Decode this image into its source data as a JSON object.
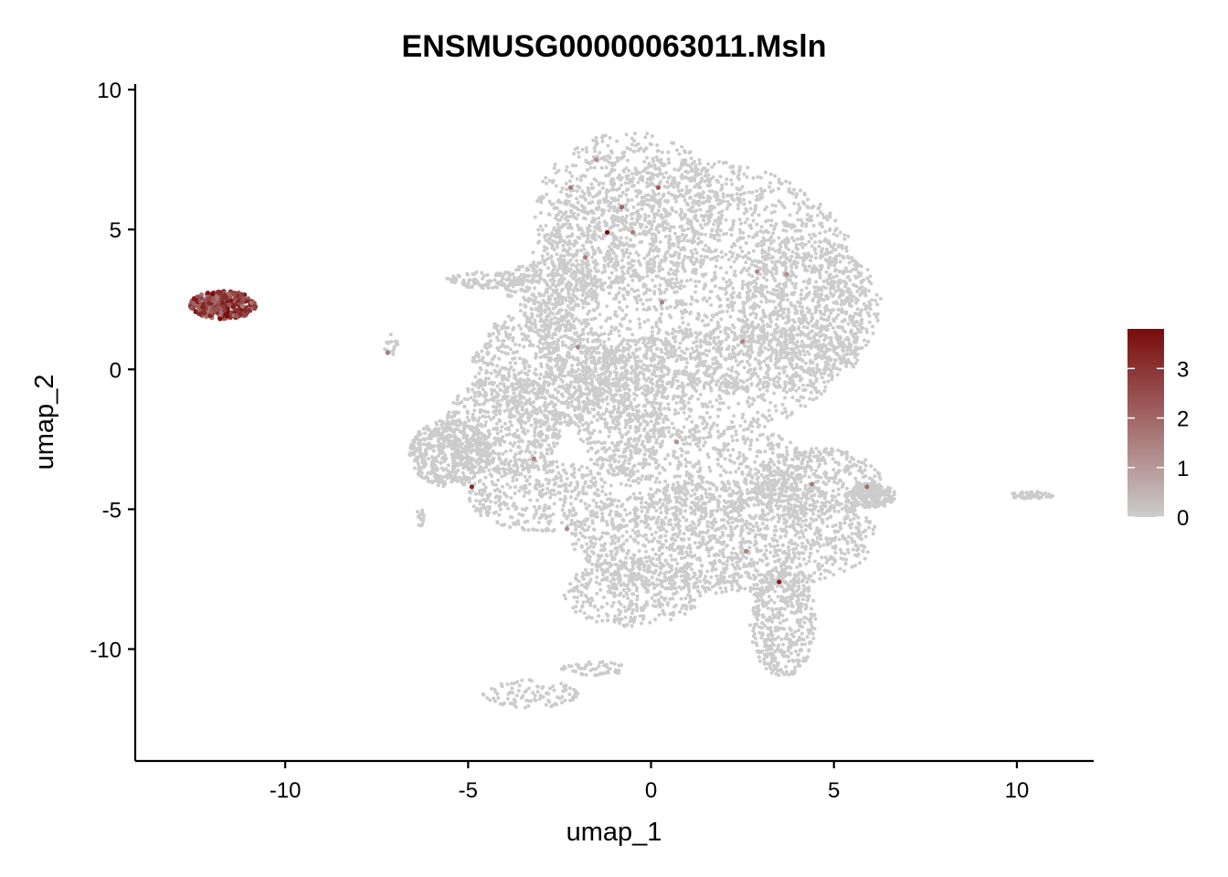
{
  "chart_data": {
    "type": "scatter",
    "title": "ENSMUSG00000063011.Msln",
    "xlabel": "umap_1",
    "ylabel": "umap_2",
    "xlim": [
      -14.1,
      12.1
    ],
    "ylim": [
      -14,
      10.2
    ],
    "x_ticks": [
      -10,
      -5,
      0,
      5,
      10
    ],
    "y_ticks": [
      -10,
      -5,
      0,
      5,
      10
    ],
    "grid": false,
    "legend": {
      "type": "colorbar",
      "position": "right",
      "ticks": [
        0,
        1,
        2,
        3
      ],
      "range": [
        0,
        3.8
      ],
      "colors": {
        "low": "#cccccc",
        "high": "#7a0b0b"
      }
    },
    "background_regions": [
      {
        "cx": 1.2,
        "cy": 2.5,
        "rx": 4.7,
        "ry": 5.0,
        "n": 2600
      },
      {
        "cx": -0.6,
        "cy": 5.5,
        "rx": 2.6,
        "ry": 3.0,
        "n": 800
      },
      {
        "cx": 4.4,
        "cy": 2.3,
        "rx": 1.9,
        "ry": 2.4,
        "n": 550
      },
      {
        "cx": -3.0,
        "cy": 0.0,
        "rx": 1.9,
        "ry": 2.2,
        "n": 700
      },
      {
        "cx": -2.7,
        "cy": 3.0,
        "rx": 1.4,
        "ry": 0.9,
        "n": 250
      },
      {
        "cx": -5.5,
        "cy": -3.0,
        "rx": 1.1,
        "ry": 1.2,
        "n": 500
      },
      {
        "cx": -4.0,
        "cy": -2.0,
        "rx": 1.6,
        "ry": 1.8,
        "n": 500
      },
      {
        "cx": -3.0,
        "cy": -4.5,
        "rx": 2.0,
        "ry": 1.3,
        "n": 400
      },
      {
        "cx": -0.8,
        "cy": -1.5,
        "rx": 1.3,
        "ry": 2.3,
        "n": 500
      },
      {
        "cx": 2.0,
        "cy": -6.0,
        "rx": 4.2,
        "ry": 2.0,
        "n": 1500
      },
      {
        "cx": 1.5,
        "cy": -3.5,
        "rx": 2.8,
        "ry": 1.6,
        "n": 500
      },
      {
        "cx": 4.5,
        "cy": -4.0,
        "rx": 1.8,
        "ry": 1.2,
        "n": 400
      },
      {
        "cx": 6.0,
        "cy": -4.5,
        "rx": 0.7,
        "ry": 0.45,
        "n": 180
      },
      {
        "cx": 3.6,
        "cy": -9.0,
        "rx": 0.9,
        "ry": 2.0,
        "n": 450
      },
      {
        "cx": -0.5,
        "cy": -8.0,
        "rx": 1.9,
        "ry": 1.2,
        "n": 350
      },
      {
        "cx": 2.2,
        "cy": 0.4,
        "rx": 3.5,
        "ry": 1.2,
        "n": 500
      },
      {
        "cx": -4.4,
        "cy": 3.2,
        "rx": 1.2,
        "ry": 0.3,
        "n": 110
      },
      {
        "cx": -6.3,
        "cy": -5.3,
        "rx": 0.1,
        "ry": 0.35,
        "n": 20
      },
      {
        "cx": -7.1,
        "cy": 0.9,
        "rx": 0.2,
        "ry": 0.4,
        "n": 18
      },
      {
        "cx": 10.4,
        "cy": -4.5,
        "rx": 0.6,
        "ry": 0.15,
        "n": 50
      },
      {
        "cx": -3.3,
        "cy": -11.6,
        "rx": 1.3,
        "ry": 0.5,
        "n": 100
      },
      {
        "cx": -1.6,
        "cy": -10.7,
        "rx": 0.9,
        "ry": 0.3,
        "n": 50
      }
    ],
    "expressing_cluster": {
      "cx": -11.7,
      "cy": 2.3,
      "rx": 0.9,
      "ry": 0.5,
      "n": 320,
      "value_range": [
        1.5,
        3.8
      ]
    },
    "scattered_expressing_points": [
      {
        "x": -1.2,
        "y": 4.9,
        "v": 3.8
      },
      {
        "x": -2.2,
        "y": 6.5,
        "v": 1.6
      },
      {
        "x": -1.5,
        "y": 7.5,
        "v": 1.2
      },
      {
        "x": -0.8,
        "y": 5.8,
        "v": 2.0
      },
      {
        "x": 0.2,
        "y": 6.5,
        "v": 2.2
      },
      {
        "x": -0.5,
        "y": 4.9,
        "v": 1.5
      },
      {
        "x": 2.9,
        "y": 3.5,
        "v": 1.4
      },
      {
        "x": 3.7,
        "y": 3.4,
        "v": 1.2
      },
      {
        "x": 0.3,
        "y": 2.4,
        "v": 1.5
      },
      {
        "x": -1.8,
        "y": 4.0,
        "v": 1.6
      },
      {
        "x": -4.9,
        "y": -4.2,
        "v": 3.2
      },
      {
        "x": -3.2,
        "y": -3.2,
        "v": 1.4
      },
      {
        "x": -2.3,
        "y": -5.7,
        "v": 1.3
      },
      {
        "x": 3.5,
        "y": -7.6,
        "v": 3.4
      },
      {
        "x": 2.6,
        "y": -6.5,
        "v": 1.5
      },
      {
        "x": 5.9,
        "y": -4.2,
        "v": 1.8
      },
      {
        "x": 4.4,
        "y": -4.1,
        "v": 1.6
      },
      {
        "x": -7.2,
        "y": 0.6,
        "v": 1.6
      },
      {
        "x": 0.7,
        "y": -2.6,
        "v": 1.2
      },
      {
        "x": -2.0,
        "y": 0.8,
        "v": 1.3
      },
      {
        "x": 2.5,
        "y": 1.0,
        "v": 1.4
      }
    ]
  }
}
